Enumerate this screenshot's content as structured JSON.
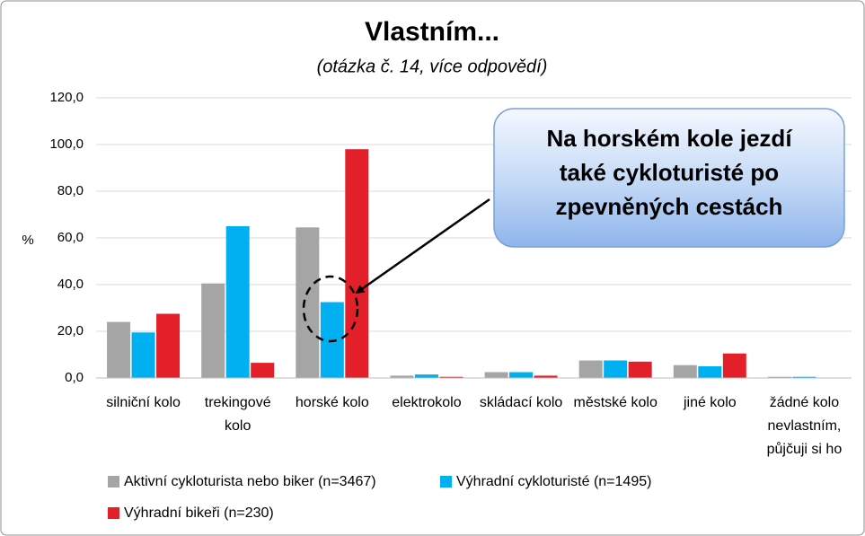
{
  "chart_data": {
    "type": "bar",
    "title": "Vlastním...",
    "subtitle": "(otázka č. 14, více odpovědí)",
    "y_label": "%",
    "categories": [
      "silniční kolo",
      "trekingové kolo",
      "horské kolo",
      "elektrokolo",
      "skládací kolo",
      "městské kolo",
      "jiné kolo",
      "žádné kolo nevlastním, půjčuji si ho"
    ],
    "series": [
      {
        "name": "Aktivní cykloturista nebo biker (n=3467)",
        "color": "#a5a5a5",
        "values": [
          24,
          40.5,
          64.5,
          1,
          2.5,
          7.5,
          5.5,
          0.5
        ]
      },
      {
        "name": "Výhradní cykloturisté (n=1495)",
        "color": "#00b0f0",
        "values": [
          19.5,
          65,
          32.5,
          1.5,
          2.5,
          7.5,
          5,
          0.5
        ]
      },
      {
        "name": "Výhradní bikeři (n=230)",
        "color": "#e3202a",
        "values": [
          27.5,
          6.5,
          98,
          0.5,
          1,
          7,
          10.5,
          0
        ]
      }
    ],
    "ylim": [
      0,
      120
    ],
    "yticks": [
      {
        "value": 0,
        "label": "0,0"
      },
      {
        "value": 20,
        "label": "20,0"
      },
      {
        "value": 40,
        "label": "40,0"
      },
      {
        "value": 60,
        "label": "60,0"
      },
      {
        "value": 80,
        "label": "80,0"
      },
      {
        "value": 100,
        "label": "100,0"
      },
      {
        "value": 120,
        "label": "120,0"
      }
    ],
    "grid": true,
    "legend": "bottom",
    "annotation": [
      "Na horském kole jezdí",
      "také cykloturisté po",
      "zpevněných cestách"
    ]
  }
}
